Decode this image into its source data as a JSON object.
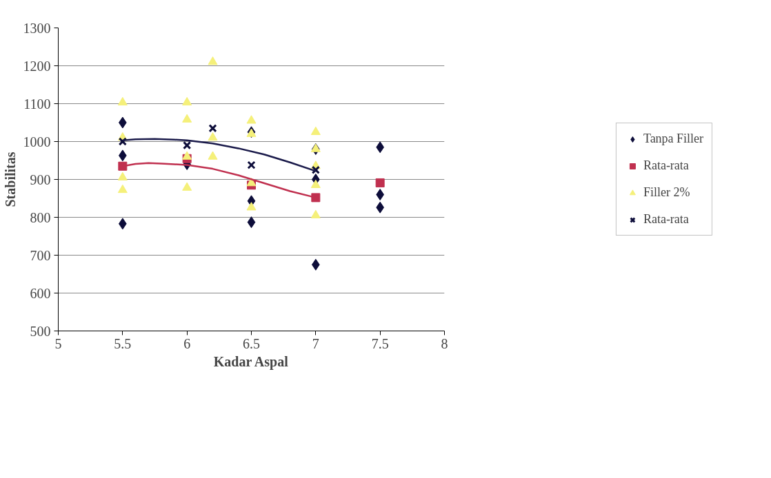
{
  "chart_data": {
    "type": "scatter",
    "xlabel": "Kadar Aspal",
    "ylabel": "Stabilitas",
    "xlim": [
      5,
      8
    ],
    "xticks": [
      5,
      5.5,
      6,
      6.5,
      7,
      7.5,
      8
    ],
    "ylim": [
      500,
      1300
    ],
    "yticks": [
      500,
      600,
      700,
      800,
      900,
      1000,
      1100,
      1200,
      1300
    ],
    "grid": "y",
    "legend": "right",
    "series": [
      {
        "name": "Tanpa Filler",
        "color": "#0d0d3a",
        "marker": "diamond",
        "x": [
          5.5,
          5.5,
          5.5,
          6,
          6.5,
          6.5,
          6.5,
          7,
          7,
          7,
          7.5,
          7.5,
          7.5
        ],
        "values": [
          1050,
          963,
          783,
          940,
          1025,
          843,
          787,
          980,
          900,
          675,
          985,
          860,
          826
        ]
      },
      {
        "name": "Rata-rata",
        "color": "#c0304f",
        "marker": "square",
        "x": [
          5.5,
          6,
          6.5,
          7,
          7.5
        ],
        "values": [
          935,
          955,
          885,
          852,
          891
        ]
      },
      {
        "name": "Filler 2%",
        "color": "#f5f07a",
        "marker": "triangle",
        "x": [
          5.5,
          5.5,
          5.5,
          5.5,
          6,
          6,
          6,
          6,
          6.2,
          6.2,
          6.2,
          6.5,
          6.5,
          6.5,
          6.5,
          7,
          7,
          7,
          7,
          7
        ],
        "values": [
          1103,
          1010,
          905,
          872,
          1103,
          1058,
          960,
          878,
          1210,
          1010,
          960,
          1055,
          1020,
          890,
          826,
          1025,
          980,
          935,
          885,
          805
        ]
      },
      {
        "name": "Rata-rata",
        "color": "#0d0d3a",
        "marker": "cross",
        "x": [
          5.5,
          6,
          6.2,
          6.5,
          7
        ],
        "values": [
          1000,
          990,
          1035,
          938,
          925
        ]
      },
      {
        "type": "line",
        "color": "#c0304f",
        "x": [
          5.5,
          5.6,
          5.7,
          5.8,
          5.9,
          6,
          6.2,
          6.4,
          6.6,
          6.8,
          7
        ],
        "values": [
          935,
          941,
          943,
          942,
          940,
          938,
          928,
          911,
          890,
          869,
          852
        ]
      },
      {
        "type": "line",
        "color": "#1a1a4a",
        "x": [
          5.5,
          5.6,
          5.75,
          5.9,
          6,
          6.2,
          6.4,
          6.6,
          6.8,
          7
        ],
        "values": [
          1003,
          1006,
          1007,
          1005,
          1003,
          995,
          982,
          966,
          945,
          922
        ]
      }
    ]
  }
}
